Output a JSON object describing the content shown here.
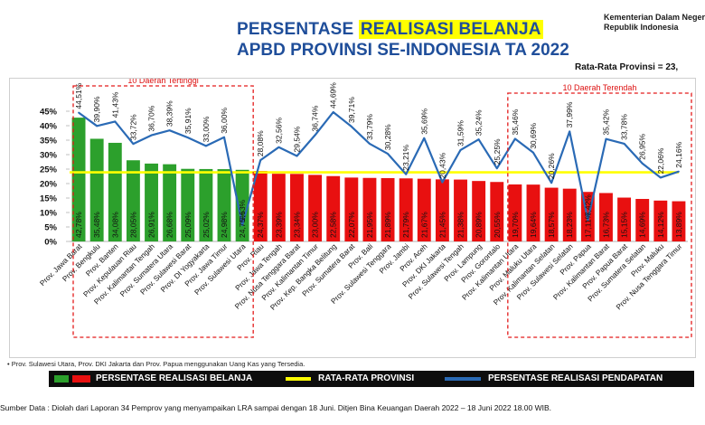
{
  "header": {
    "title_prefix": "PERSENTASE ",
    "title_highlight": "REALISASI BELANJA",
    "title_line2": "APBD PROVINSI SE-INDONESIA TA 2022",
    "org_line1": "Kementerian Dalam Negeri",
    "org_line2": "Republik Indonesia",
    "average_label": "Rata-Rata Provinsi = 23,"
  },
  "colors": {
    "title": "#1f4e9a",
    "highlight": "#ffff00",
    "bar_top": "#2ca02c",
    "bar_rest": "#e81010",
    "avg_line": "#ffff00",
    "revenue_line": "#2a6ab5",
    "group_box": "#e31b1b"
  },
  "chart_data": {
    "type": "bar",
    "categories": [
      "Prov. Jawa Barat",
      "Prov. Bengkulu",
      "Prov. Banten",
      "Prov. Kepulauan Riau",
      "Prov. Kalimantan Tengah",
      "Prov. Sumatera Utara",
      "Prov. Sulawesi Barat",
      "Prov. DI Yogyakarta",
      "Prov. Jawa Timur",
      "Prov. Sulawesi Utara",
      "Prov. Riau",
      "Prov. Jawa Tengah",
      "Prov. Nusa Tenggara Barat",
      "Prov. Kalimantan Timur",
      "Prov. Kep. Bangka Belitung",
      "Prov. Sumatera Barat",
      "Prov. Bali",
      "Prov. Sulawesi Tenggara",
      "Prov. Jambi",
      "Prov. Aceh",
      "Prov. DKI Jakarta",
      "Prov. Sulawesi Tengah",
      "Prov. Lampung",
      "Prov. Gorontalo",
      "Prov. Kalimantan Utara",
      "Prov. Maluku Utara",
      "Prov. Kalimantan Selatan",
      "Prov. Sulawesi Selatan",
      "Prov. Papua",
      "Prov. Kalimantan Barat",
      "Prov. Papua Barat",
      "Prov. Sumatera Selatan",
      "Prov. Maluku",
      "Prov. Nusa Tenggara Timur"
    ],
    "series": [
      {
        "name": "PERSENTASE REALISASI BELANJA",
        "values": [
          42.78,
          35.48,
          34.08,
          28.05,
          26.91,
          26.68,
          25.09,
          25.02,
          24.98,
          24.75,
          24.37,
          23.39,
          23.34,
          23.0,
          22.58,
          22.07,
          21.95,
          21.89,
          21.79,
          21.67,
          21.45,
          21.38,
          20.89,
          20.55,
          19.7,
          19.64,
          18.57,
          18.23,
          17.11,
          16.73,
          15.15,
          14.69,
          14.12,
          13.89
        ],
        "labels": [
          "42,78%",
          "35,48%",
          "34,08%",
          "28,05%",
          "26,91%",
          "26,68%",
          "25,09%",
          "25,02%",
          "24,98%",
          "24,75%",
          "24,37%",
          "23,39%",
          "23,34%",
          "23,00%",
          "22,58%",
          "22,07%",
          "21,95%",
          "21,89%",
          "21,79%",
          "21,67%",
          "21,45%",
          "21,38%",
          "20,89%",
          "20,55%",
          "19,70%",
          "19,64%",
          "18,57%",
          "18,23%",
          "17,11%",
          "16,73%",
          "15,15%",
          "14,69%",
          "14,12%",
          "13,89%"
        ]
      },
      {
        "name": "PERSENTASE REALISASI PENDAPATAN",
        "values": [
          44.51,
          39.9,
          41.43,
          33.72,
          36.7,
          38.39,
          35.91,
          33.0,
          36.0,
          5.63,
          28.08,
          32.56,
          29.54,
          36.74,
          44.69,
          39.71,
          33.79,
          30.28,
          23.21,
          35.69,
          20.43,
          31.59,
          35.24,
          25.25,
          35.46,
          30.69,
          20.26,
          37.99,
          7.42,
          35.42,
          33.78,
          26.95,
          22.06,
          24.16
        ],
        "labels": [
          "44,51%",
          "39,90%",
          "41,43%",
          "33,72%",
          "36,70%",
          "38,39%",
          "35,91%",
          "33,00%",
          "36,00%",
          "5,63%",
          "28,08%",
          "32,56%",
          "29,54%",
          "36,74%",
          "44,69%",
          "39,71%",
          "33,79%",
          "30,28%",
          "23,21%",
          "35,69%",
          "20,43%",
          "31,59%",
          "35,24%",
          "25,25%",
          "35,46%",
          "30,69%",
          "20,26%",
          "37,99%",
          "7,42%",
          "35,42%",
          "33,78%",
          "26,95%",
          "22,06%",
          "24,16%"
        ]
      }
    ],
    "average": 23.9,
    "ylim": [
      0,
      45
    ],
    "yticks": [
      "0%",
      "5%",
      "10%",
      "15%",
      "20%",
      "25%",
      "30%",
      "35%",
      "40%",
      "45%"
    ],
    "top_group_label": "10 Daerah Tertinggi",
    "bottom_group_label": "10 Daerah Terendah"
  },
  "note": "• Prov. Sulawesi Utara, Prov. DKI Jakarta dan Prov. Papua menggunakan Uang Kas yang Tersedia.",
  "legend": {
    "belanja": "PERSENTASE REALISASI BELANJA",
    "rata": "RATA-RATA PROVINSI",
    "pendapatan": "PERSENTASE REALISASI PENDAPATAN"
  },
  "source": "Sumber Data : Diolah dari Laporan 34 Pemprov yang menyampaikan LRA sampai dengan 18 Juni. Ditjen Bina Keuangan Daerah 2022 – 18 Juni 2022  18.00 WIB."
}
